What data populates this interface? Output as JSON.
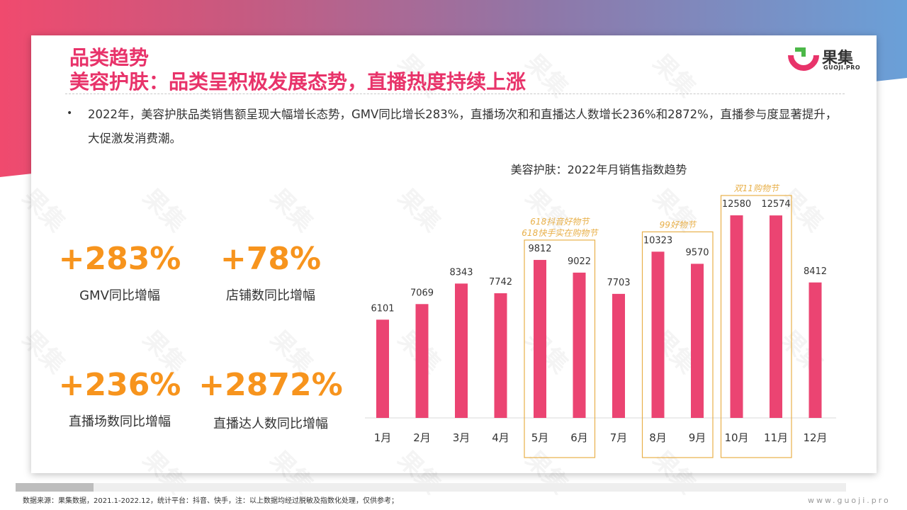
{
  "header": {
    "title_line1": "品类趋势",
    "title_line2": "美容护肤：品类呈积极发展态势，直播热度持续上涨"
  },
  "logo": {
    "name": "果集",
    "sub": "GUOJI.PRO"
  },
  "bullet": {
    "text": "2022年，美容护肤品类销售额呈现大幅增长态势，GMV同比增长283%，直播场次和和直播达人数增长236%和2872%，直播参与度显著提升，大促激发消费潮。"
  },
  "kpis": [
    {
      "value": "+283%",
      "label": "GMV同比增幅"
    },
    {
      "value": "+78%",
      "label": "店铺数同比增幅"
    },
    {
      "value": "+236%",
      "label": "直播场数同比增幅"
    },
    {
      "value": "+2872%",
      "label": "直播达人数同比增幅"
    }
  ],
  "chart_data": {
    "type": "bar",
    "title": "美容护肤：2022年月销售指数趋势",
    "categories": [
      "1月",
      "2月",
      "3月",
      "4月",
      "5月",
      "6月",
      "7月",
      "8月",
      "9月",
      "10月",
      "11月",
      "12月"
    ],
    "values": [
      6101,
      7069,
      8343,
      7742,
      9812,
      9022,
      7703,
      10323,
      9570,
      12580,
      12574,
      8412
    ],
    "ylim": [
      0,
      14000
    ],
    "grid": false,
    "bar_color": "#eb4472",
    "annotations": [
      {
        "from": 4,
        "to": 5,
        "lines": [
          "618抖音好物节",
          "618快手实在购物节"
        ],
        "color": "#e8b04a"
      },
      {
        "from": 7,
        "to": 8,
        "lines": [
          "99好物节"
        ],
        "color": "#e8b04a"
      },
      {
        "from": 9,
        "to": 10,
        "lines": [
          "双11购物节"
        ],
        "color": "#e8b04a"
      }
    ]
  },
  "footer": {
    "source": "数据来源：果集数据，2021.1-2022.12，统计平台：抖音、快手，注：以上数据均经过脱敏及指数化处理，仅供参考；",
    "url": "www.guoji.pro"
  },
  "watermark_text": "果集",
  "colors": {
    "accent": "#e8336a",
    "kpi": "#f7941d",
    "bar": "#eb4472",
    "annotation": "#e8b04a"
  }
}
